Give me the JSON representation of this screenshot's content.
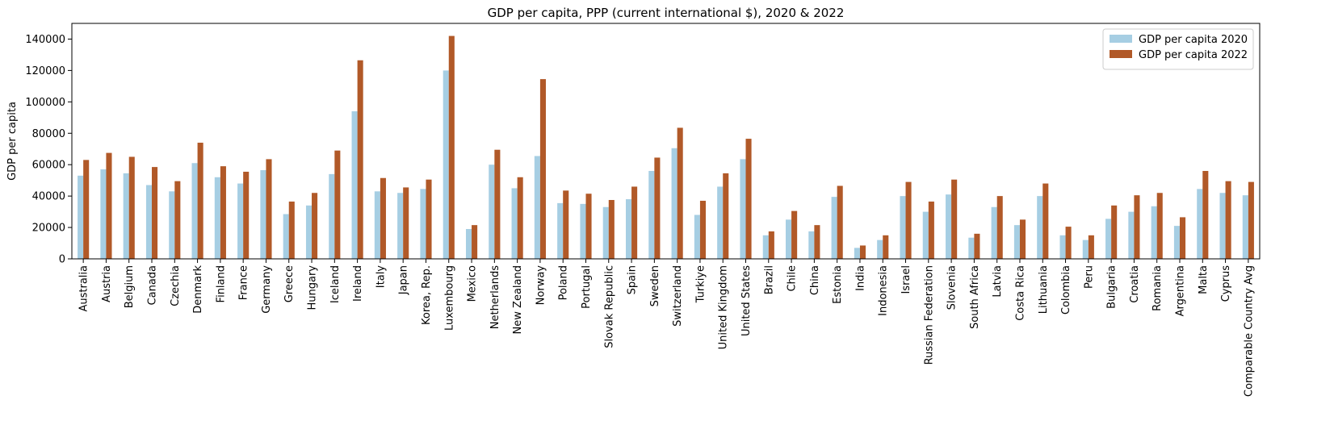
{
  "chart_data": {
    "type": "bar",
    "title": "GDP per capita, PPP (current international $), 2020 & 2022",
    "xlabel": "",
    "ylabel": "GDP per capita",
    "ylim": [
      0,
      150000
    ],
    "yticks": [
      0,
      20000,
      40000,
      60000,
      80000,
      100000,
      120000,
      140000
    ],
    "grid": false,
    "legend_position": "top-right",
    "categories": [
      "Australia",
      "Austria",
      "Belgium",
      "Canada",
      "Czechia",
      "Denmark",
      "Finland",
      "France",
      "Germany",
      "Greece",
      "Hungary",
      "Iceland",
      "Ireland",
      "Italy",
      "Japan",
      "Korea, Rep.",
      "Luxembourg",
      "Mexico",
      "Netherlands",
      "New Zealand",
      "Norway",
      "Poland",
      "Portugal",
      "Slovak Republic",
      "Spain",
      "Sweden",
      "Switzerland",
      "Turkiye",
      "United Kingdom",
      "United States",
      "Brazil",
      "Chile",
      "China",
      "Estonia",
      "India",
      "Indonesia",
      "Israel",
      "Russian Federation",
      "Slovenia",
      "South Africa",
      "Latvia",
      "Costa Rica",
      "Lithuania",
      "Colombia",
      "Peru",
      "Bulgaria",
      "Croatia",
      "Romania",
      "Argentina",
      "Malta",
      "Cyprus",
      "Comparable Country Avg"
    ],
    "series": [
      {
        "name": "GDP per capita 2020",
        "color": "#a6cee3",
        "values": [
          53000,
          57000,
          54500,
          47000,
          43000,
          61000,
          52000,
          48000,
          56500,
          28500,
          34000,
          54000,
          94000,
          43000,
          42000,
          44500,
          120000,
          19000,
          60000,
          45000,
          65500,
          35500,
          35000,
          33000,
          38000,
          56000,
          70500,
          28000,
          46000,
          63500,
          15000,
          25000,
          17500,
          39500,
          7000,
          12000,
          40000,
          30000,
          41000,
          13500,
          33000,
          21500,
          40000,
          15000,
          12000,
          25500,
          30000,
          33500,
          21000,
          44500,
          42000,
          40500
        ]
      },
      {
        "name": "GDP per capita 2022",
        "color": "#b15928",
        "values": [
          63000,
          67500,
          65000,
          58500,
          49500,
          74000,
          59000,
          55500,
          63500,
          36500,
          42000,
          69000,
          126500,
          51500,
          45500,
          50500,
          142000,
          21500,
          69500,
          52000,
          114500,
          43500,
          41500,
          37500,
          46000,
          64500,
          83500,
          37000,
          54500,
          76500,
          17500,
          30500,
          21500,
          46500,
          8500,
          15000,
          49000,
          36500,
          50500,
          16000,
          40000,
          25000,
          48000,
          20500,
          15000,
          34000,
          40500,
          42000,
          26500,
          56000,
          49500,
          49000
        ]
      }
    ]
  }
}
